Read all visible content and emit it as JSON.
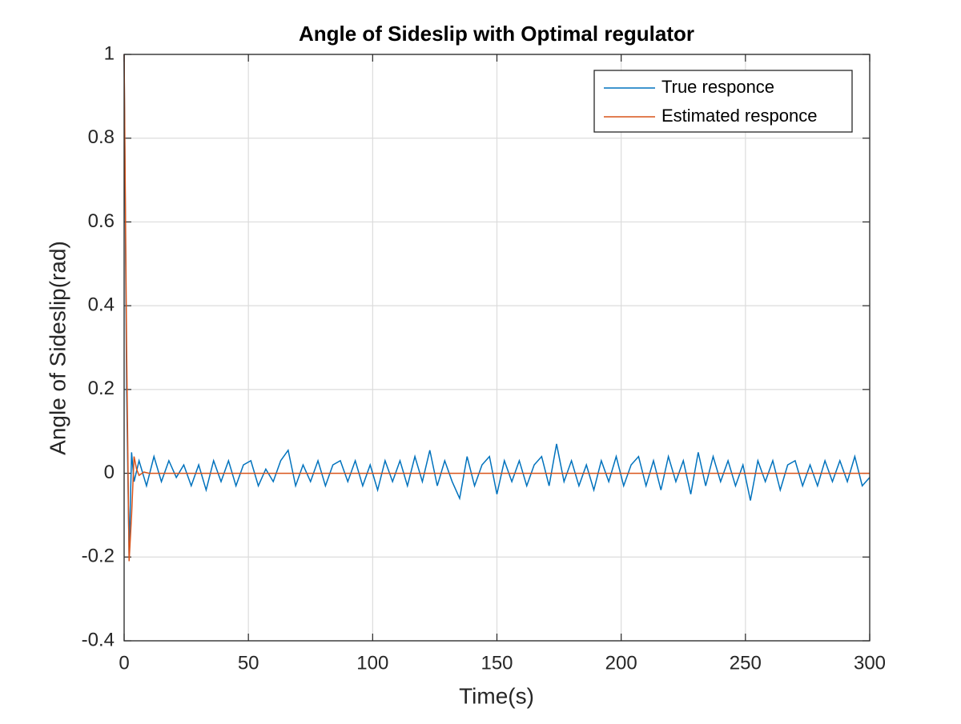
{
  "chart_data": {
    "type": "line",
    "title": "Angle of Sideslip with Optimal regulator",
    "x_label": "Time(s)",
    "y_label": "Angle of Sideslip(rad)",
    "xlim": [
      0,
      300
    ],
    "xticks": [
      0,
      50,
      100,
      150,
      200,
      250,
      300
    ],
    "ylim": [
      -0.4,
      1
    ],
    "yticks": [
      -0.4,
      -0.2,
      0,
      0.2,
      0.4,
      0.6,
      0.8,
      1
    ],
    "grid": true,
    "legend": "upper-right",
    "series": [
      {
        "name": "True responce",
        "color": "#0072bd",
        "x": [
          0,
          1,
          2,
          3,
          4,
          6,
          9,
          12,
          15,
          18,
          21,
          24,
          27,
          30,
          33,
          36,
          39,
          42,
          45,
          48,
          51,
          54,
          57,
          60,
          63,
          66,
          69,
          72,
          75,
          78,
          81,
          84,
          87,
          90,
          93,
          96,
          99,
          102,
          105,
          108,
          111,
          114,
          117,
          120,
          123,
          126,
          129,
          132,
          135,
          138,
          141,
          144,
          147,
          150,
          153,
          156,
          159,
          162,
          165,
          168,
          171,
          174,
          177,
          180,
          183,
          186,
          189,
          192,
          195,
          198,
          201,
          204,
          207,
          210,
          213,
          216,
          219,
          222,
          225,
          228,
          231,
          234,
          237,
          240,
          243,
          246,
          249,
          252,
          255,
          258,
          261,
          264,
          267,
          270,
          273,
          276,
          279,
          282,
          285,
          288,
          291,
          294,
          297,
          300
        ],
        "values": [
          1,
          0.2,
          -0.2,
          0.05,
          -0.02,
          0.03,
          -0.03,
          0.04,
          -0.02,
          0.03,
          -0.01,
          0.02,
          -0.03,
          0.02,
          -0.04,
          0.03,
          -0.02,
          0.03,
          -0.03,
          0.02,
          0.03,
          -0.03,
          0.01,
          -0.02,
          0.03,
          0.055,
          -0.03,
          0.02,
          -0.02,
          0.03,
          -0.03,
          0.02,
          0.03,
          -0.02,
          0.03,
          -0.03,
          0.02,
          -0.04,
          0.03,
          -0.02,
          0.03,
          -0.03,
          0.04,
          -0.02,
          0.055,
          -0.03,
          0.03,
          -0.02,
          -0.06,
          0.04,
          -0.03,
          0.02,
          0.04,
          -0.05,
          0.03,
          -0.02,
          0.03,
          -0.03,
          0.02,
          0.04,
          -0.03,
          0.07,
          -0.02,
          0.03,
          -0.03,
          0.02,
          -0.04,
          0.03,
          -0.02,
          0.04,
          -0.03,
          0.02,
          0.04,
          -0.03,
          0.03,
          -0.04,
          0.04,
          -0.02,
          0.03,
          -0.05,
          0.05,
          -0.03,
          0.04,
          -0.02,
          0.03,
          -0.03,
          0.02,
          -0.065,
          0.03,
          -0.02,
          0.03,
          -0.04,
          0.02,
          0.03,
          -0.03,
          0.02,
          -0.03,
          0.03,
          -0.02,
          0.03,
          -0.02,
          0.04,
          -0.03,
          -0.01
        ]
      },
      {
        "name": "Estimated responce",
        "color": "#d95319",
        "x": [
          0,
          1,
          2,
          3,
          4,
          5,
          6,
          8,
          10,
          300
        ],
        "values": [
          1,
          0.3,
          -0.21,
          -0.1,
          0.04,
          0.01,
          -0.005,
          0.003,
          0,
          0
        ]
      }
    ]
  }
}
